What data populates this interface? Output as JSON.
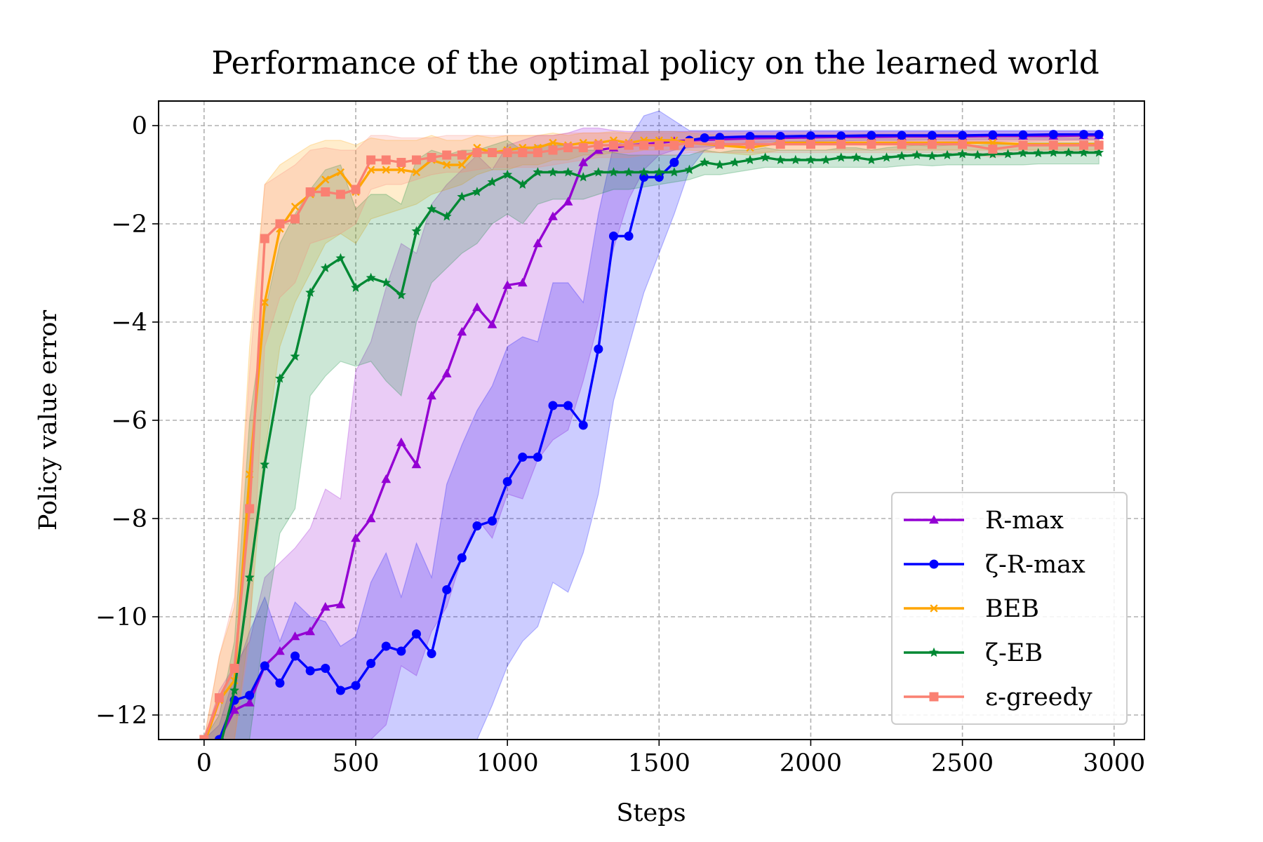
{
  "chart_data": {
    "type": "line",
    "title": "Performance of the optimal policy on the learned world",
    "xlabel": "Steps",
    "ylabel": "Policy value error",
    "xlim": [
      -150,
      3100
    ],
    "ylim": [
      -12.5,
      0.5
    ],
    "xticks": [
      0,
      500,
      1000,
      1500,
      2000,
      2500,
      3000
    ],
    "yticks": [
      0,
      -2,
      -4,
      -6,
      -8,
      -10,
      -12
    ],
    "xtick_labels": [
      "0",
      "500",
      "1000",
      "1500",
      "2000",
      "2500",
      "3000"
    ],
    "ytick_labels": [
      "0",
      "−2",
      "−4",
      "−6",
      "−8",
      "−10",
      "−12"
    ],
    "grid": true,
    "legend_position": "lower-right",
    "series": [
      {
        "name": "R-max",
        "color": "#9400D3",
        "marker": "triangle",
        "x": [
          0,
          50,
          100,
          150,
          200,
          250,
          300,
          350,
          400,
          450,
          500,
          550,
          600,
          650,
          700,
          750,
          800,
          850,
          900,
          950,
          1000,
          1050,
          1100,
          1150,
          1200,
          1250,
          1300,
          1350,
          1400,
          1450,
          1500,
          1550,
          1600,
          1700,
          1800,
          1900,
          2000,
          2100,
          2200,
          2300,
          2400,
          2500,
          2600,
          2700,
          2800,
          2900,
          2950
        ],
        "y": [
          -12.7,
          -12.5,
          -11.9,
          -11.75,
          -11.0,
          -10.7,
          -10.4,
          -10.3,
          -9.8,
          -9.75,
          -8.4,
          -8.0,
          -7.2,
          -6.45,
          -6.9,
          -5.5,
          -5.05,
          -4.2,
          -3.7,
          -4.05,
          -3.25,
          -3.2,
          -2.4,
          -1.85,
          -1.55,
          -0.75,
          -0.5,
          -0.45,
          -0.4,
          -0.38,
          -0.35,
          -0.32,
          -0.3,
          -0.28,
          -0.26,
          -0.25,
          -0.24,
          -0.23,
          -0.23,
          -0.22,
          -0.22,
          -0.22,
          -0.21,
          -0.21,
          -0.21,
          -0.2,
          -0.2
        ],
        "lower": [
          -12.5,
          -12.5,
          -12.5,
          -12.5,
          -12.5,
          -12.5,
          -12.5,
          -12.5,
          -12.5,
          -12.5,
          -12.5,
          -12.5,
          -12.2,
          -11.0,
          -11.2,
          -10.3,
          -9.8,
          -8.8,
          -8.0,
          -8.4,
          -7.5,
          -7.6,
          -6.8,
          -6.4,
          -6.2,
          -5.2,
          -4.0,
          -2.5,
          -1.5,
          -0.9,
          -0.6,
          -0.5,
          -0.45,
          -0.42,
          -0.4,
          -0.38,
          -0.36,
          -0.35,
          -0.34,
          -0.33,
          -0.33,
          -0.32,
          -0.32,
          -0.32,
          -0.31,
          -0.3,
          -0.3
        ],
        "upper": [
          -12.5,
          -11.5,
          -11.0,
          -10.5,
          -9.2,
          -8.9,
          -8.6,
          -8.2,
          -7.4,
          -7.6,
          -5.0,
          -4.4,
          -3.3,
          -2.4,
          -2.6,
          -1.6,
          -1.2,
          -0.9,
          -0.6,
          -0.9,
          -0.4,
          -0.3,
          -0.2,
          -0.2,
          -0.15,
          -0.05,
          -0.05,
          -0.1,
          -0.12,
          -0.12,
          -0.12,
          -0.12,
          -0.12,
          -0.12,
          -0.12,
          -0.12,
          -0.12,
          -0.12,
          -0.12,
          -0.12,
          -0.12,
          -0.12,
          -0.12,
          -0.12,
          -0.12,
          -0.12,
          -0.12
        ]
      },
      {
        "name": "ζ-R-max",
        "color": "#0000FF",
        "marker": "circle",
        "x": [
          0,
          50,
          100,
          150,
          200,
          250,
          300,
          350,
          400,
          450,
          500,
          550,
          600,
          650,
          700,
          750,
          800,
          850,
          900,
          950,
          1000,
          1050,
          1100,
          1150,
          1200,
          1250,
          1300,
          1350,
          1400,
          1450,
          1500,
          1550,
          1600,
          1650,
          1700,
          1800,
          1900,
          2000,
          2100,
          2200,
          2300,
          2400,
          2500,
          2600,
          2700,
          2800,
          2900,
          2950
        ],
        "y": [
          -12.8,
          -12.5,
          -11.7,
          -11.6,
          -11.0,
          -11.35,
          -10.8,
          -11.1,
          -11.05,
          -11.5,
          -11.4,
          -10.95,
          -10.6,
          -10.7,
          -10.35,
          -10.75,
          -9.45,
          -8.8,
          -8.15,
          -8.05,
          -7.25,
          -6.75,
          -6.75,
          -5.7,
          -5.7,
          -6.1,
          -4.55,
          -2.25,
          -2.25,
          -1.05,
          -1.05,
          -0.75,
          -0.3,
          -0.25,
          -0.24,
          -0.22,
          -0.22,
          -0.21,
          -0.21,
          -0.2,
          -0.2,
          -0.2,
          -0.2,
          -0.19,
          -0.19,
          -0.18,
          -0.18,
          -0.18
        ],
        "lower": [
          -12.5,
          -12.5,
          -12.5,
          -12.5,
          -12.5,
          -12.5,
          -12.5,
          -12.5,
          -12.5,
          -12.5,
          -12.5,
          -12.5,
          -12.5,
          -12.5,
          -12.5,
          -12.5,
          -12.5,
          -12.5,
          -12.5,
          -11.8,
          -11.0,
          -10.5,
          -10.2,
          -9.3,
          -9.5,
          -8.7,
          -7.5,
          -5.6,
          -4.5,
          -3.4,
          -2.6,
          -1.8,
          -0.9,
          -0.5,
          -0.4,
          -0.35,
          -0.33,
          -0.32,
          -0.31,
          -0.3,
          -0.3,
          -0.29,
          -0.29,
          -0.28,
          -0.28,
          -0.28,
          -0.28,
          -0.28
        ],
        "upper": [
          -12.5,
          -12.2,
          -11.2,
          -10.3,
          -9.6,
          -10.5,
          -9.7,
          -10.0,
          -10.1,
          -10.6,
          -10.4,
          -9.3,
          -8.7,
          -9.6,
          -8.5,
          -9.2,
          -7.3,
          -6.5,
          -5.8,
          -5.3,
          -4.5,
          -4.3,
          -4.4,
          -3.2,
          -3.2,
          -3.6,
          -1.8,
          -0.4,
          -0.3,
          0.2,
          0.3,
          0.1,
          -0.1,
          -0.1,
          -0.1,
          -0.1,
          -0.1,
          -0.1,
          -0.1,
          -0.1,
          -0.1,
          -0.1,
          -0.1,
          -0.1,
          -0.1,
          -0.1,
          -0.1,
          -0.1
        ]
      },
      {
        "name": "BEB",
        "color": "#FFA500",
        "marker": "x",
        "x": [
          0,
          50,
          100,
          150,
          200,
          250,
          300,
          350,
          400,
          450,
          500,
          550,
          600,
          650,
          700,
          750,
          800,
          850,
          900,
          950,
          1000,
          1050,
          1100,
          1150,
          1200,
          1250,
          1300,
          1350,
          1400,
          1450,
          1500,
          1550,
          1600,
          1700,
          1800,
          1900,
          2000,
          2100,
          2200,
          2300,
          2400,
          2500,
          2600,
          2700,
          2800,
          2900,
          2950
        ],
        "y": [
          -12.6,
          -11.7,
          -11.3,
          -7.1,
          -3.6,
          -2.1,
          -1.65,
          -1.4,
          -1.1,
          -0.95,
          -1.35,
          -0.9,
          -0.9,
          -0.9,
          -0.95,
          -0.7,
          -0.8,
          -0.8,
          -0.45,
          -0.55,
          -0.5,
          -0.45,
          -0.45,
          -0.35,
          -0.4,
          -0.35,
          -0.35,
          -0.3,
          -0.35,
          -0.3,
          -0.3,
          -0.3,
          -0.35,
          -0.4,
          -0.45,
          -0.35,
          -0.35,
          -0.35,
          -0.35,
          -0.35,
          -0.35,
          -0.35,
          -0.35,
          -0.38,
          -0.38,
          -0.38,
          -0.38
        ],
        "lower": [
          -12.5,
          -12.5,
          -12.5,
          -10.2,
          -6.7,
          -4.5,
          -3.6,
          -3.0,
          -2.4,
          -2.2,
          -2.4,
          -1.9,
          -1.8,
          -1.7,
          -1.6,
          -1.4,
          -1.3,
          -1.2,
          -1.0,
          -0.9,
          -0.9,
          -0.8,
          -0.8,
          -0.7,
          -0.7,
          -0.6,
          -0.6,
          -0.55,
          -0.55,
          -0.5,
          -0.5,
          -0.5,
          -0.5,
          -0.55,
          -0.6,
          -0.5,
          -0.5,
          -0.5,
          -0.5,
          -0.5,
          -0.5,
          -0.5,
          -0.5,
          -0.5,
          -0.5,
          -0.5,
          -0.5
        ],
        "upper": [
          -12.5,
          -10.8,
          -9.8,
          -4.5,
          -1.2,
          -0.8,
          -0.6,
          -0.4,
          -0.3,
          -0.3,
          -0.4,
          -0.25,
          -0.3,
          -0.3,
          -0.3,
          -0.2,
          -0.3,
          -0.3,
          -0.2,
          -0.25,
          -0.2,
          -0.2,
          -0.2,
          -0.15,
          -0.2,
          -0.15,
          -0.15,
          -0.12,
          -0.15,
          -0.12,
          -0.12,
          -0.12,
          -0.15,
          -0.2,
          -0.25,
          -0.2,
          -0.2,
          -0.2,
          -0.2,
          -0.2,
          -0.2,
          -0.2,
          -0.2,
          -0.22,
          -0.22,
          -0.22,
          -0.22
        ]
      },
      {
        "name": "ζ-EB",
        "color": "#008833",
        "marker": "star",
        "x": [
          0,
          50,
          100,
          150,
          200,
          250,
          300,
          350,
          400,
          450,
          500,
          550,
          600,
          650,
          700,
          750,
          800,
          850,
          900,
          950,
          1000,
          1050,
          1100,
          1150,
          1200,
          1250,
          1300,
          1350,
          1400,
          1450,
          1500,
          1550,
          1600,
          1650,
          1700,
          1750,
          1800,
          1850,
          1900,
          1950,
          2000,
          2050,
          2100,
          2150,
          2200,
          2250,
          2300,
          2350,
          2400,
          2450,
          2500,
          2550,
          2600,
          2650,
          2700,
          2750,
          2800,
          2850,
          2900,
          2950
        ],
        "y": [
          -13.0,
          -12.7,
          -11.5,
          -9.2,
          -6.9,
          -5.15,
          -4.7,
          -3.4,
          -2.9,
          -2.7,
          -3.3,
          -3.1,
          -3.2,
          -3.45,
          -2.15,
          -1.7,
          -1.85,
          -1.45,
          -1.35,
          -1.15,
          -1.0,
          -1.2,
          -0.95,
          -0.95,
          -0.95,
          -1.05,
          -0.95,
          -0.95,
          -0.95,
          -0.95,
          -0.95,
          -0.95,
          -0.9,
          -0.75,
          -0.8,
          -0.75,
          -0.7,
          -0.65,
          -0.7,
          -0.7,
          -0.7,
          -0.7,
          -0.65,
          -0.65,
          -0.7,
          -0.65,
          -0.62,
          -0.6,
          -0.62,
          -0.6,
          -0.58,
          -0.6,
          -0.58,
          -0.58,
          -0.56,
          -0.56,
          -0.55,
          -0.55,
          -0.55,
          -0.55
        ],
        "lower": [
          -12.5,
          -12.5,
          -12.5,
          -12.5,
          -10.2,
          -8.3,
          -7.8,
          -5.5,
          -5.1,
          -4.8,
          -4.9,
          -4.8,
          -5.2,
          -5.5,
          -4.0,
          -3.2,
          -2.9,
          -2.6,
          -2.4,
          -2.0,
          -1.8,
          -2.0,
          -1.6,
          -1.5,
          -1.5,
          -1.5,
          -1.4,
          -1.3,
          -1.3,
          -1.25,
          -1.2,
          -1.15,
          -1.1,
          -1.0,
          -1.0,
          -0.95,
          -0.9,
          -0.85,
          -0.85,
          -0.85,
          -0.85,
          -0.85,
          -0.85,
          -0.85,
          -0.85,
          -0.85,
          -0.82,
          -0.8,
          -0.82,
          -0.8,
          -0.8,
          -0.8,
          -0.8,
          -0.8,
          -0.8,
          -0.78,
          -0.78,
          -0.78,
          -0.78,
          -0.78
        ],
        "upper": [
          -12.5,
          -12.0,
          -10.5,
          -6.0,
          -3.8,
          -2.4,
          -1.8,
          -1.3,
          -0.9,
          -0.8,
          -1.7,
          -1.4,
          -1.4,
          -1.6,
          -0.7,
          -0.5,
          -0.6,
          -0.5,
          -0.5,
          -0.4,
          -0.3,
          -0.5,
          -0.4,
          -0.4,
          -0.4,
          -0.5,
          -0.5,
          -0.55,
          -0.6,
          -0.6,
          -0.6,
          -0.6,
          -0.6,
          -0.5,
          -0.55,
          -0.5,
          -0.5,
          -0.45,
          -0.5,
          -0.5,
          -0.5,
          -0.5,
          -0.45,
          -0.45,
          -0.5,
          -0.45,
          -0.42,
          -0.4,
          -0.42,
          -0.4,
          -0.38,
          -0.4,
          -0.38,
          -0.38,
          -0.35,
          -0.35,
          -0.35,
          -0.35,
          -0.35,
          -0.35
        ]
      },
      {
        "name": "ε-greedy",
        "color": "#FA8072",
        "marker": "square",
        "x": [
          0,
          50,
          100,
          150,
          200,
          250,
          300,
          350,
          400,
          450,
          500,
          550,
          600,
          650,
          700,
          750,
          800,
          850,
          900,
          950,
          1000,
          1050,
          1100,
          1150,
          1200,
          1250,
          1300,
          1350,
          1400,
          1450,
          1500,
          1550,
          1600,
          1700,
          1800,
          1900,
          2000,
          2100,
          2200,
          2300,
          2400,
          2500,
          2600,
          2700,
          2800,
          2900,
          2950
        ],
        "y": [
          -12.5,
          -11.65,
          -11.05,
          -7.8,
          -2.3,
          -2.0,
          -1.9,
          -1.35,
          -1.35,
          -1.4,
          -1.3,
          -0.7,
          -0.7,
          -0.75,
          -0.7,
          -0.65,
          -0.6,
          -0.6,
          -0.55,
          -0.55,
          -0.55,
          -0.55,
          -0.55,
          -0.5,
          -0.45,
          -0.45,
          -0.4,
          -0.4,
          -0.4,
          -0.4,
          -0.4,
          -0.4,
          -0.35,
          -0.38,
          -0.38,
          -0.38,
          -0.38,
          -0.38,
          -0.38,
          -0.38,
          -0.38,
          -0.38,
          -0.48,
          -0.4,
          -0.4,
          -0.4,
          -0.4
        ],
        "lower": [
          -12.5,
          -12.5,
          -12.5,
          -10.5,
          -4.5,
          -3.5,
          -3.2,
          -2.4,
          -2.3,
          -2.2,
          -2.0,
          -1.3,
          -1.2,
          -1.2,
          -1.1,
          -1.0,
          -0.95,
          -0.95,
          -0.9,
          -0.85,
          -0.85,
          -0.85,
          -0.85,
          -0.8,
          -0.75,
          -0.7,
          -0.65,
          -0.65,
          -0.65,
          -0.6,
          -0.6,
          -0.6,
          -0.55,
          -0.55,
          -0.55,
          -0.55,
          -0.55,
          -0.55,
          -0.55,
          -0.55,
          -0.55,
          -0.55,
          -0.65,
          -0.55,
          -0.55,
          -0.55,
          -0.55
        ],
        "upper": [
          -12.5,
          -10.8,
          -9.6,
          -5.0,
          -1.2,
          -1.0,
          -0.8,
          -0.5,
          -0.45,
          -0.5,
          -0.5,
          -0.2,
          -0.2,
          -0.25,
          -0.25,
          -0.25,
          -0.2,
          -0.2,
          -0.2,
          -0.2,
          -0.2,
          -0.2,
          -0.2,
          -0.2,
          -0.15,
          -0.15,
          -0.15,
          -0.15,
          -0.15,
          -0.15,
          -0.15,
          -0.15,
          -0.12,
          -0.15,
          -0.15,
          -0.15,
          -0.15,
          -0.15,
          -0.15,
          -0.15,
          -0.15,
          -0.15,
          -0.25,
          -0.18,
          -0.18,
          -0.18,
          -0.18
        ]
      }
    ]
  }
}
